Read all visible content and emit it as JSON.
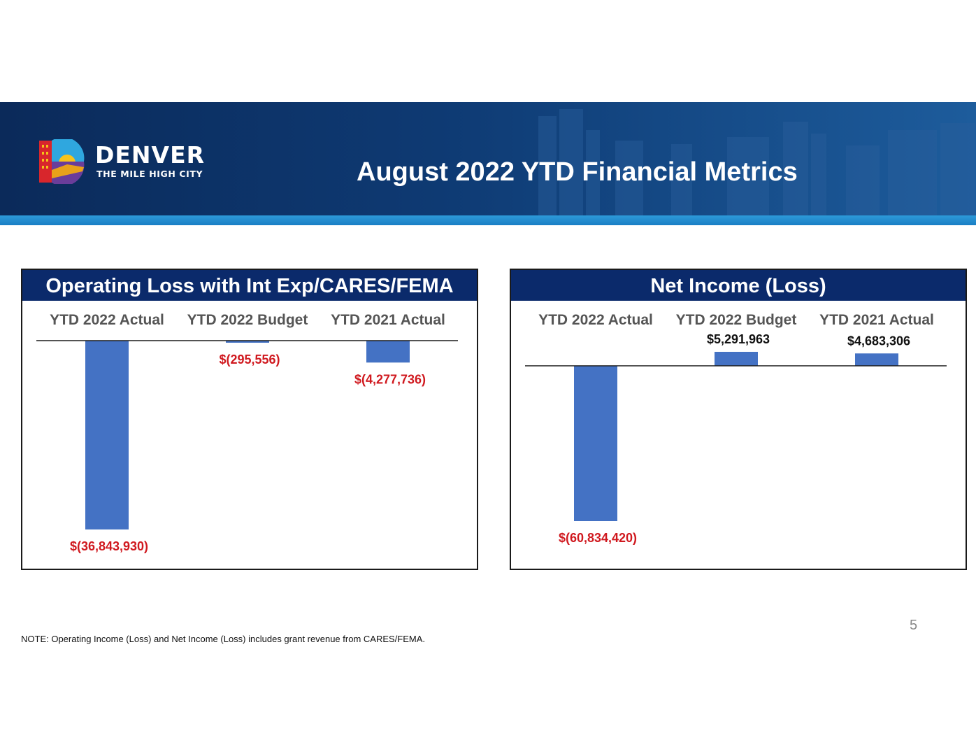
{
  "header": {
    "logo_word": "DENVER",
    "logo_tagline": "THE MILE HIGH CITY",
    "title": "August 2022 YTD Financial Metrics"
  },
  "colors": {
    "banner": "#0e3a73",
    "panel_header": "#0b2a6b",
    "bar": "#4472c4",
    "negative_label": "#d0191f",
    "positive_label": "#111111"
  },
  "chart_data": [
    {
      "type": "bar",
      "title": "Operating Loss with Int Exp/CARES/FEMA",
      "categories": [
        "YTD 2022 Actual",
        "YTD 2022 Budget",
        "YTD 2021 Actual"
      ],
      "values": [
        -36843930,
        -295556,
        -4277736
      ],
      "labels": [
        "$(36,843,930)",
        "$(295,556)",
        "$(4,277,736)"
      ],
      "ylim": [
        -38000000,
        0
      ]
    },
    {
      "type": "bar",
      "title": "Net Income (Loss)",
      "categories": [
        "YTD 2022 Actual",
        "YTD 2022 Budget",
        "YTD 2021 Actual"
      ],
      "values": [
        -60834420,
        5291963,
        4683306
      ],
      "labels": [
        "$(60,834,420)",
        "$5,291,963",
        "$4,683,306"
      ],
      "ylim": [
        -66000000,
        15000000
      ]
    }
  ],
  "footer": {
    "note": "NOTE: Operating Income (Loss) and Net Income (Loss) includes grant revenue from CARES/FEMA.",
    "page_number": "5"
  }
}
